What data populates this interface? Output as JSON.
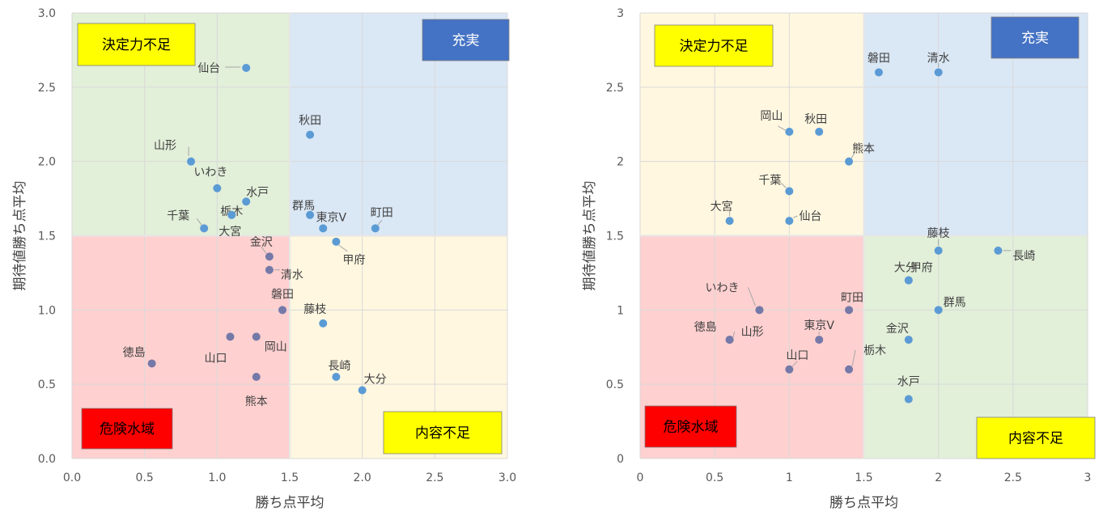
{
  "chart_data": [
    {
      "type": "scatter",
      "title": "",
      "xlabel": "勝ち点平均",
      "ylabel": "期待値勝ち点平均",
      "xlim": [
        0,
        3
      ],
      "ylim": [
        0,
        3
      ],
      "x_ticks": [
        "0.0",
        "0.5",
        "1.0",
        "1.5",
        "2.0",
        "2.5",
        "3.0"
      ],
      "y_ticks": [
        "0.0",
        "0.5",
        "1.0",
        "1.5",
        "2.0",
        "2.5",
        "3.0"
      ],
      "grid": true,
      "quadrants": [
        {
          "label": "決定力不足",
          "color": "#e2efd9",
          "box_color": "#ffff00",
          "text_color": "#000000"
        },
        {
          "label": "充実",
          "color": "#dae7f5",
          "box_color": "#4472c4",
          "text_color": "#ffffff"
        },
        {
          "label": "危険水域",
          "color": "#ffd0d0",
          "box_color": "#ff0000",
          "text_color": "#000000"
        },
        {
          "label": "内容不足",
          "color": "#fff7e0",
          "box_color": "#ffff00",
          "text_color": "#000000"
        }
      ],
      "points": [
        {
          "name": "仙台",
          "x": 1.2,
          "y": 2.63
        },
        {
          "name": "秋田",
          "x": 1.64,
          "y": 2.18
        },
        {
          "name": "山形",
          "x": 0.82,
          "y": 2.0
        },
        {
          "name": "いわき",
          "x": 1.0,
          "y": 1.82
        },
        {
          "name": "水戸",
          "x": 1.2,
          "y": 1.73
        },
        {
          "name": "栃木",
          "x": 1.1,
          "y": 1.64
        },
        {
          "name": "群馬",
          "x": 1.64,
          "y": 1.64
        },
        {
          "name": "千葉",
          "x": 0.91,
          "y": 1.55
        },
        {
          "name": "大宮",
          "x": 1.1,
          "y": 1.64
        },
        {
          "name": "東京V",
          "x": 1.73,
          "y": 1.55
        },
        {
          "name": "町田",
          "x": 2.09,
          "y": 1.55
        },
        {
          "name": "甲府",
          "x": 1.82,
          "y": 1.46
        },
        {
          "name": "金沢",
          "x": 1.36,
          "y": 1.36
        },
        {
          "name": "清水",
          "x": 1.36,
          "y": 1.27
        },
        {
          "name": "磐田",
          "x": 1.45,
          "y": 1.0
        },
        {
          "name": "藤枝",
          "x": 1.73,
          "y": 0.91
        },
        {
          "name": "山口",
          "x": 1.09,
          "y": 0.82
        },
        {
          "name": "岡山",
          "x": 1.27,
          "y": 0.82
        },
        {
          "name": "徳島",
          "x": 0.55,
          "y": 0.64
        },
        {
          "name": "長崎",
          "x": 1.82,
          "y": 0.55
        },
        {
          "name": "熊本",
          "x": 1.27,
          "y": 0.55
        },
        {
          "name": "大分",
          "x": 2.0,
          "y": 0.46
        }
      ]
    },
    {
      "type": "scatter",
      "title": "",
      "xlabel": "勝ち点平均",
      "ylabel": "期待値勝ち点平均",
      "xlim": [
        0,
        3
      ],
      "ylim": [
        0,
        3
      ],
      "x_ticks": [
        "0",
        "0.5",
        "1",
        "1.5",
        "2",
        "2.5",
        "3"
      ],
      "y_ticks": [
        "0",
        "0.5",
        "1",
        "1.5",
        "2",
        "2.5",
        "3"
      ],
      "grid": true,
      "quadrants": [
        {
          "label": "決定力不足",
          "color": "#fff7e0",
          "box_color": "#ffff00",
          "text_color": "#000000"
        },
        {
          "label": "充実",
          "color": "#dae7f5",
          "box_color": "#4472c4",
          "text_color": "#ffffff"
        },
        {
          "label": "危険水域",
          "color": "#ffd0d0",
          "box_color": "#ff0000",
          "text_color": "#000000"
        },
        {
          "label": "内容不足",
          "color": "#e2efd9",
          "box_color": "#ffff00",
          "text_color": "#000000"
        }
      ],
      "points": [
        {
          "name": "磐田",
          "x": 1.6,
          "y": 2.6
        },
        {
          "name": "清水",
          "x": 2.0,
          "y": 2.6
        },
        {
          "name": "岡山",
          "x": 1.0,
          "y": 2.2
        },
        {
          "name": "秋田",
          "x": 1.2,
          "y": 2.2
        },
        {
          "name": "熊本",
          "x": 1.4,
          "y": 2.0
        },
        {
          "name": "千葉",
          "x": 1.0,
          "y": 1.8
        },
        {
          "name": "大宮",
          "x": 0.6,
          "y": 1.6
        },
        {
          "name": "仙台",
          "x": 1.0,
          "y": 1.6
        },
        {
          "name": "藤枝",
          "x": 2.0,
          "y": 1.4
        },
        {
          "name": "長崎",
          "x": 2.4,
          "y": 1.4
        },
        {
          "name": "大分",
          "x": 1.8,
          "y": 1.2
        },
        {
          "name": "甲府",
          "x": 1.8,
          "y": 1.2
        },
        {
          "name": "いわき",
          "x": 0.8,
          "y": 1.0
        },
        {
          "name": "町田",
          "x": 1.4,
          "y": 1.0
        },
        {
          "name": "群馬",
          "x": 2.0,
          "y": 1.0
        },
        {
          "name": "徳島",
          "x": 0.6,
          "y": 0.8
        },
        {
          "name": "山形",
          "x": 0.6,
          "y": 0.8
        },
        {
          "name": "東京V",
          "x": 1.2,
          "y": 0.8
        },
        {
          "name": "金沢",
          "x": 1.8,
          "y": 0.8
        },
        {
          "name": "山口",
          "x": 1.0,
          "y": 0.6
        },
        {
          "name": "栃木",
          "x": 1.4,
          "y": 0.6
        },
        {
          "name": "水戸",
          "x": 1.8,
          "y": 0.4
        }
      ]
    }
  ]
}
